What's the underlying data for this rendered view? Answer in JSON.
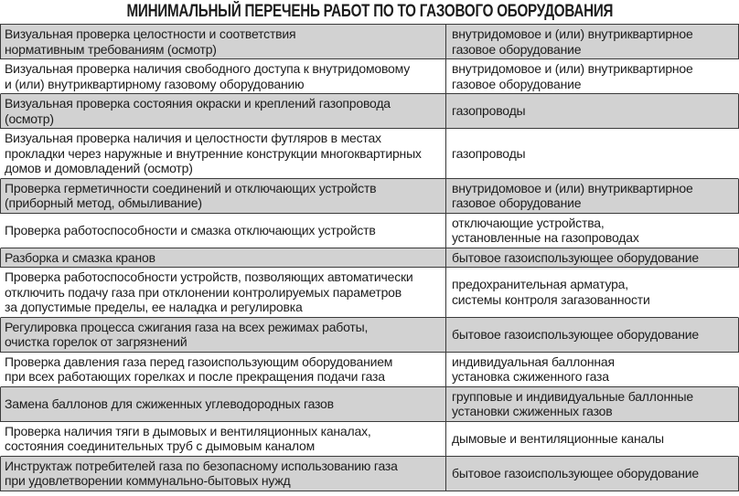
{
  "title": "МИНИМАЛЬНЫЙ ПЕРЕЧЕНЬ РАБОТ ПО ТО ГАЗОВОГО ОБОРУДОВАНИЯ",
  "colors": {
    "row_shade": "#d2d2d2",
    "border": "#3a3a3a",
    "text": "#1c1c1c",
    "page_bg": "#ffffff"
  },
  "table": {
    "rows": [
      {
        "shaded": true,
        "work": "Визуальная проверка целостности и соответствия\nнормативным требованиям (осмотр)",
        "equipment": "внутридомовое и (или) внутриквартирное\nгазовое оборудование"
      },
      {
        "shaded": false,
        "work": "Визуальная проверка наличия свободного доступа к внутридомовому\nи (или) внутриквартирному газовому оборудованию",
        "equipment": "внутридомовое и (или) внутриквартирное\nгазовое оборудование"
      },
      {
        "shaded": true,
        "work": "Визуальная проверка состояния окраски и креплений газопровода\n(осмотр)",
        "equipment": "газопроводы"
      },
      {
        "shaded": false,
        "work": "Визуальная проверка наличия и целостности футляров в местах\nпрокладки через наружные и внутренние конструкции многоквартирных\nдомов и домовладений (осмотр)",
        "equipment": "газопроводы"
      },
      {
        "shaded": true,
        "work": "Проверка герметичности соединений и отключающих устройств\n(приборный метод, обмыливание)",
        "equipment": "внутридомовое и (или) внутриквартирное\nгазовое оборудование"
      },
      {
        "shaded": false,
        "work": "Проверка работоспособности и смазка отключающих устройств",
        "equipment": "отключающие устройства,\nустановленные на газопроводах"
      },
      {
        "shaded": true,
        "work": "Разборка и смазка кранов",
        "equipment": "бытовое газоиспользующее оборудование"
      },
      {
        "shaded": false,
        "work": "Проверка работоспособности устройств, позволяющих автоматически\nотключить подачу газа при отклонении контролируемых параметров\nза допустимые пределы, ее наладка и регулировка",
        "equipment": "предохранительная арматура,\nсистемы контроля загазованности"
      },
      {
        "shaded": true,
        "work": "Регулировка процесса сжигания газа на всех режимах работы,\nочистка горелок от загрязнений",
        "equipment": "бытовое газоиспользующее оборудование"
      },
      {
        "shaded": false,
        "work": "Проверка давления газа перед газоиспользующим оборудованием\nпри всех работающих горелках и после прекращения подачи газа",
        "equipment": "индивидуальная баллонная\nустановка сжиженного газа"
      },
      {
        "shaded": true,
        "work": "Замена баллонов для сжиженных углеводородных газов",
        "equipment": "групповые и индивидуальные баллонные\nустановки сжиженных газов"
      },
      {
        "shaded": false,
        "work": "Проверка наличия тяги в дымовых и вентиляционных каналах,\nсостояния соединительных труб с дымовым каналом",
        "equipment": "дымовые и вентиляционные каналы"
      },
      {
        "shaded": true,
        "work": "Инструктаж потребителей газа по безопасному использованию газа\nпри удовлетворении коммунально-бытовых нужд",
        "equipment": "бытовое газоиспользующее оборудование"
      }
    ]
  }
}
